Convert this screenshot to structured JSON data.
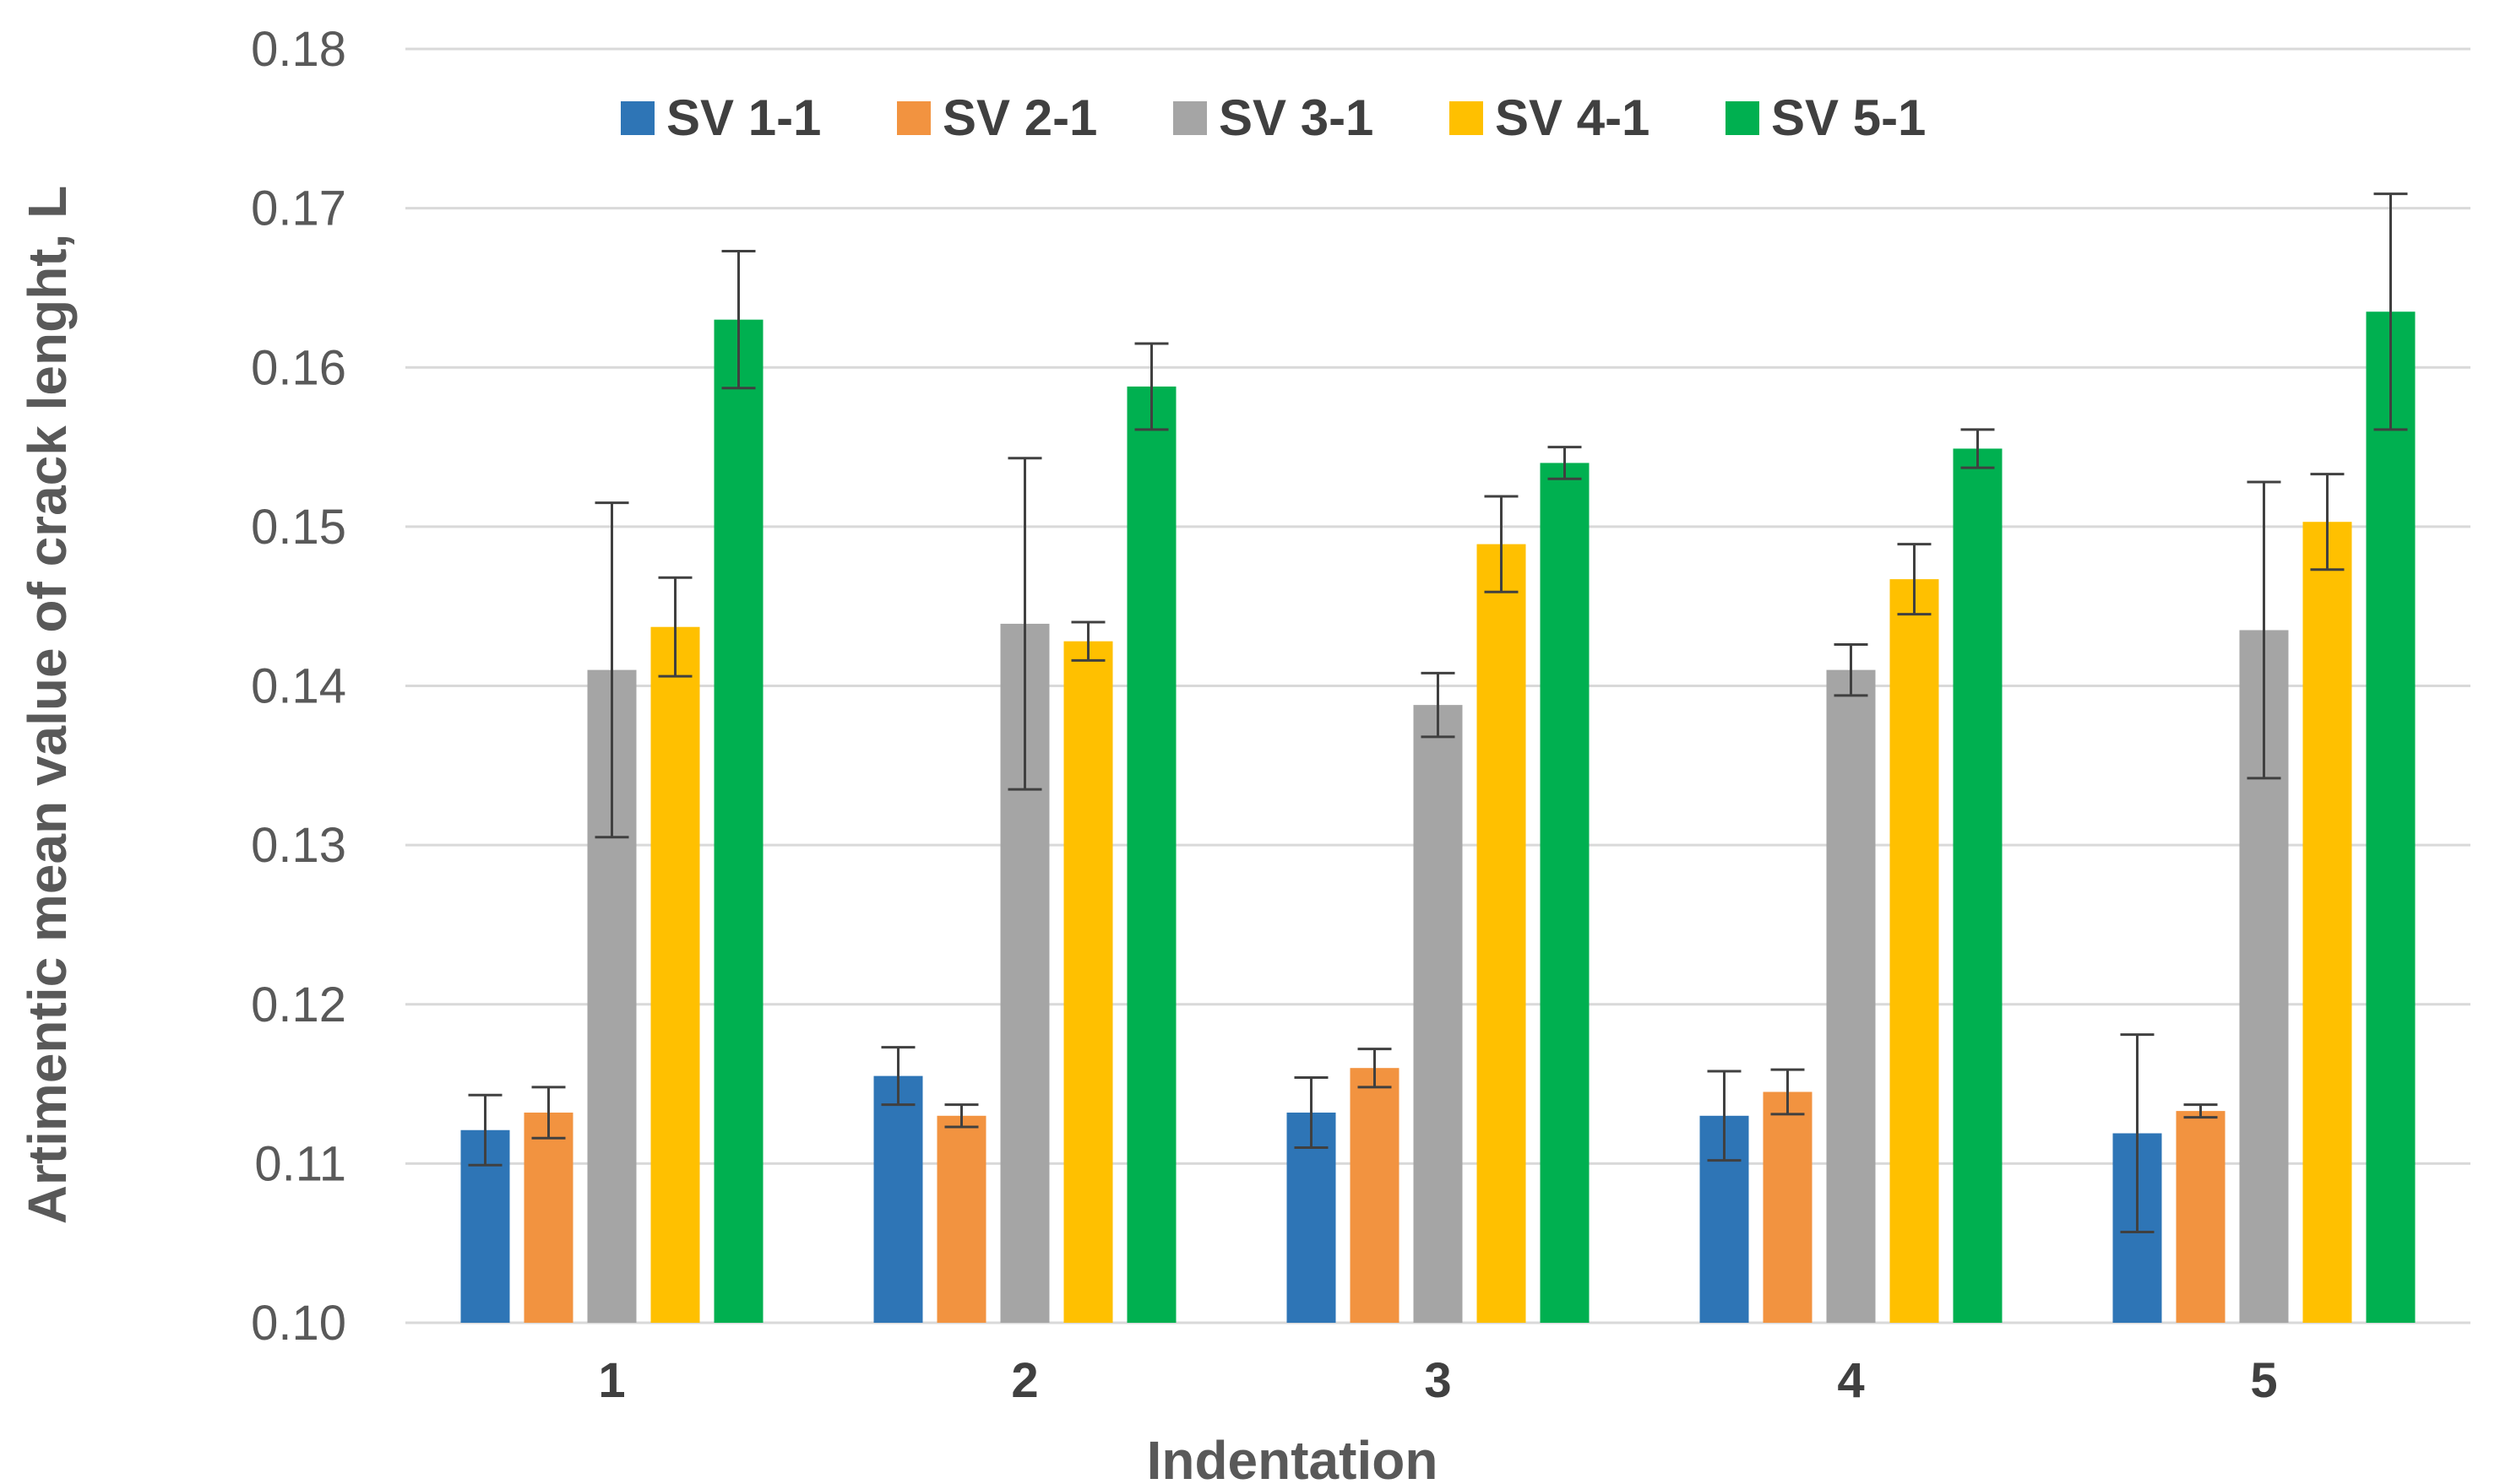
{
  "chart_data": {
    "type": "bar",
    "title": "",
    "xlabel": "Indentation",
    "ylabel": "Artimentic mean value of crack lenght, L",
    "categories": [
      "1",
      "2",
      "3",
      "4",
      "5"
    ],
    "ylim": [
      0.1,
      0.18
    ],
    "yticks": [
      "0.10",
      "0.11",
      "0.12",
      "0.13",
      "0.14",
      "0.15",
      "0.16",
      "0.17",
      "0.18"
    ],
    "grid": true,
    "legend_position": "top",
    "series": [
      {
        "name": "SV 1-1",
        "color": "#2e75b6",
        "values": [
          0.1121,
          0.1155,
          0.1132,
          0.113,
          0.1119
        ],
        "errors": [
          0.0022,
          0.0018,
          0.0022,
          0.0028,
          0.0062
        ]
      },
      {
        "name": "SV 2-1",
        "color": "#f29340",
        "values": [
          0.1132,
          0.113,
          0.116,
          0.1145,
          0.1133
        ],
        "errors": [
          0.0016,
          0.0007,
          0.0012,
          0.0014,
          0.0004
        ]
      },
      {
        "name": "SV 3-1",
        "color": "#a5a5a5",
        "values": [
          0.141,
          0.1439,
          0.1388,
          0.141,
          0.1435
        ],
        "errors": [
          0.0105,
          0.0104,
          0.002,
          0.0016,
          0.0093
        ]
      },
      {
        "name": "SV 4-1",
        "color": "#ffc000",
        "values": [
          0.1437,
          0.1428,
          0.1489,
          0.1467,
          0.1503
        ],
        "errors": [
          0.0031,
          0.0012,
          0.003,
          0.0022,
          0.003
        ]
      },
      {
        "name": "SV 5-1",
        "color": "#00b050",
        "values": [
          0.163,
          0.1588,
          0.154,
          0.1549,
          0.1635
        ],
        "errors": [
          0.0043,
          0.0027,
          0.001,
          0.0012,
          0.0074
        ]
      }
    ]
  }
}
